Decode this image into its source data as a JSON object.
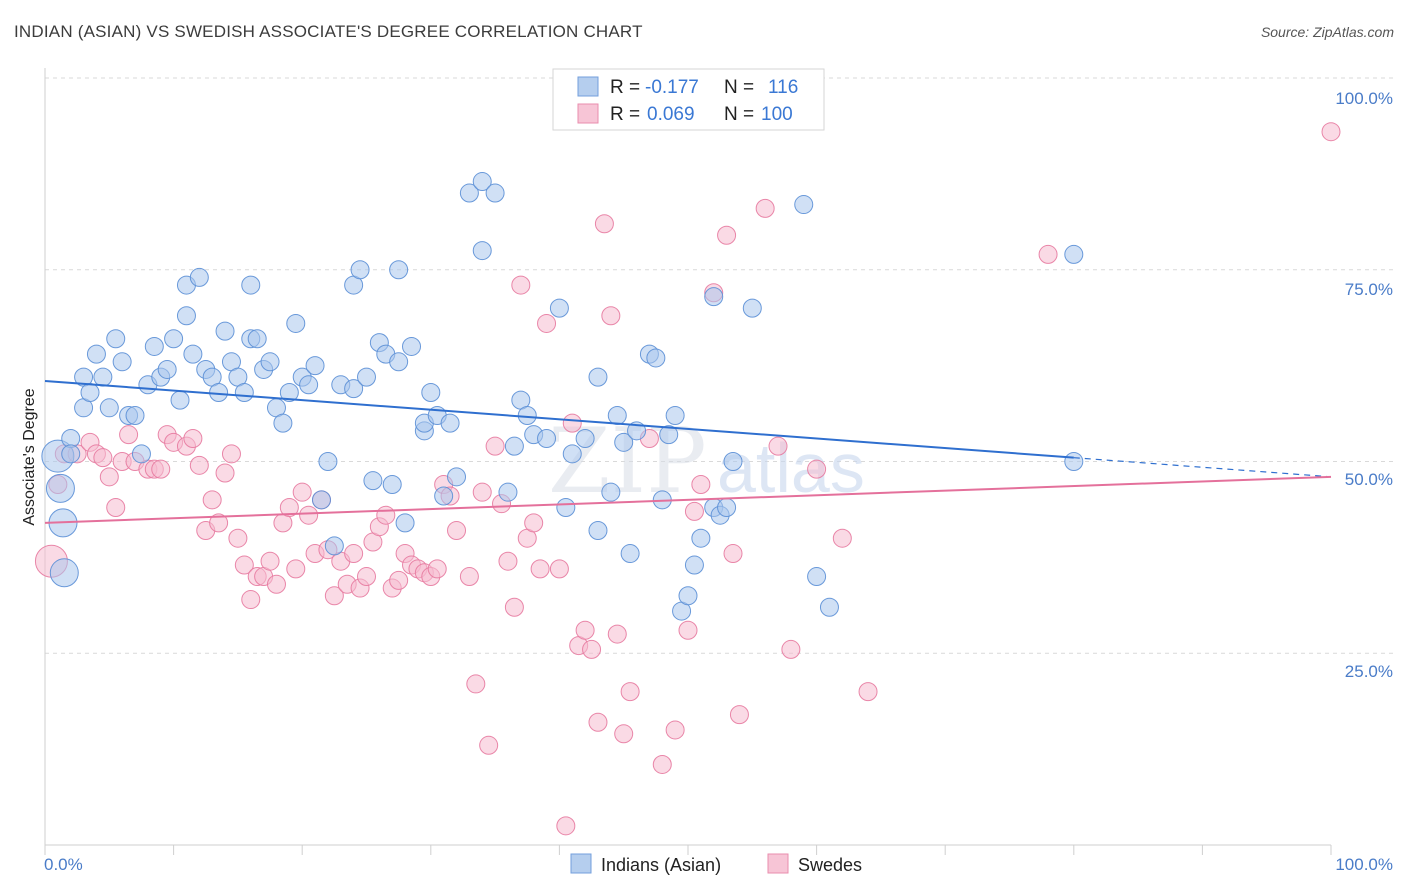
{
  "header": {
    "title": "INDIAN (ASIAN) VS SWEDISH ASSOCIATE'S DEGREE CORRELATION CHART",
    "source": "Source: ZipAtlas.com"
  },
  "watermark": {
    "zip": "ZIP",
    "atlas": "atlas"
  },
  "colors": {
    "blue_fill": "#a9c6ec",
    "blue_stroke": "#5b8fd6",
    "blue_line": "#2f6fcf",
    "pink_fill": "#f6bcd0",
    "pink_stroke": "#e77aa0",
    "pink_line": "#e4709b",
    "axis_label": "#4a7cc8",
    "grid": "#d9d9d9"
  },
  "legend": {
    "rows": [
      {
        "r_label": "R =",
        "r_value": "-0.177",
        "n_label": "N =",
        "n_value": "116"
      },
      {
        "r_label": "R =",
        "r_value": "0.069",
        "n_label": "N =",
        "n_value": "100"
      }
    ]
  },
  "chart_data": {
    "type": "scatter",
    "xlabel": "",
    "ylabel": "Associate's Degree",
    "xlim": [
      0,
      100
    ],
    "ylim": [
      0,
      100
    ],
    "x_tick_labels": [
      "0.0%",
      "100.0%"
    ],
    "y_tick_labels": [
      "25.0%",
      "50.0%",
      "75.0%",
      "100.0%"
    ],
    "y_ticks": [
      25,
      50,
      75,
      100
    ],
    "grid": true,
    "legend_position": "top-center",
    "series": [
      {
        "name": "Indians (Asian)",
        "trend": {
          "x0": 0,
          "y0": 60.5,
          "x1": 80,
          "y1": 50.5,
          "dashed_to": 100,
          "y_end": 48.0
        },
        "points": [
          [
            1,
            50.7
          ],
          [
            1.2,
            46.5
          ],
          [
            1.4,
            42
          ],
          [
            1.5,
            35.5
          ],
          [
            2,
            53
          ],
          [
            2,
            51
          ],
          [
            3,
            61
          ],
          [
            3,
            57
          ],
          [
            3.5,
            59
          ],
          [
            4,
            64
          ],
          [
            4.5,
            61
          ],
          [
            5,
            57
          ],
          [
            5.5,
            66
          ],
          [
            6,
            63
          ],
          [
            6.5,
            56
          ],
          [
            7,
            56
          ],
          [
            7.5,
            51
          ],
          [
            8,
            60
          ],
          [
            8.5,
            65
          ],
          [
            9,
            61
          ],
          [
            9.5,
            62
          ],
          [
            10,
            66
          ],
          [
            10.5,
            58
          ],
          [
            11,
            69
          ],
          [
            11,
            73
          ],
          [
            11.5,
            64
          ],
          [
            12,
            74
          ],
          [
            12.5,
            62
          ],
          [
            13,
            61
          ],
          [
            13.5,
            59
          ],
          [
            14,
            67
          ],
          [
            14.5,
            63
          ],
          [
            15,
            61
          ],
          [
            15.5,
            59
          ],
          [
            16,
            66
          ],
          [
            16,
            73
          ],
          [
            16.5,
            66
          ],
          [
            17,
            62
          ],
          [
            17.5,
            63
          ],
          [
            18,
            57
          ],
          [
            18.5,
            55
          ],
          [
            19,
            59
          ],
          [
            19.5,
            68
          ],
          [
            20,
            61
          ],
          [
            20.5,
            60
          ],
          [
            21,
            62.5
          ],
          [
            21.5,
            45
          ],
          [
            22,
            50
          ],
          [
            22.5,
            39
          ],
          [
            23,
            60
          ],
          [
            24,
            59.5
          ],
          [
            24,
            73
          ],
          [
            24.5,
            75
          ],
          [
            25,
            61
          ],
          [
            25.5,
            47.5
          ],
          [
            26,
            65.5
          ],
          [
            26.5,
            64
          ],
          [
            27,
            47
          ],
          [
            27.5,
            63
          ],
          [
            27.5,
            75
          ],
          [
            28,
            42
          ],
          [
            28.5,
            65
          ],
          [
            29.5,
            54
          ],
          [
            29.5,
            55
          ],
          [
            30,
            59
          ],
          [
            30.5,
            56
          ],
          [
            31,
            45.5
          ],
          [
            31.5,
            55
          ],
          [
            32,
            48
          ],
          [
            33,
            85
          ],
          [
            34,
            86.5
          ],
          [
            34,
            77.5
          ],
          [
            35,
            85
          ],
          [
            36,
            46
          ],
          [
            36.5,
            52
          ],
          [
            37,
            58
          ],
          [
            37.5,
            56
          ],
          [
            38,
            53.5
          ],
          [
            39,
            53
          ],
          [
            40,
            70
          ],
          [
            40.5,
            44
          ],
          [
            41,
            51
          ],
          [
            42,
            53
          ],
          [
            43,
            41
          ],
          [
            43,
            61
          ],
          [
            44,
            46
          ],
          [
            44.5,
            56
          ],
          [
            45,
            52.5
          ],
          [
            45.5,
            38
          ],
          [
            46,
            54
          ],
          [
            47,
            64
          ],
          [
            47.5,
            63.5
          ],
          [
            48,
            45
          ],
          [
            48.5,
            53.5
          ],
          [
            49,
            56
          ],
          [
            49.5,
            30.5
          ],
          [
            50,
            32.5
          ],
          [
            50.5,
            36.5
          ],
          [
            51,
            40
          ],
          [
            52,
            71.5
          ],
          [
            52,
            44
          ],
          [
            52.5,
            43
          ],
          [
            53,
            44
          ],
          [
            53.5,
            50
          ],
          [
            55,
            70
          ],
          [
            59,
            83.5
          ],
          [
            60,
            35
          ],
          [
            61,
            31
          ],
          [
            80,
            50
          ],
          [
            80,
            77
          ]
        ],
        "sizes": {
          "0": 16,
          "1": 14,
          "2": 14,
          "3": 14
        }
      },
      {
        "name": "Swedes",
        "trend": {
          "x0": 0,
          "y0": 42.0,
          "x1": 100,
          "y1": 48.0
        },
        "points": [
          [
            0.5,
            37
          ],
          [
            1,
            47
          ],
          [
            1.5,
            51
          ],
          [
            2.5,
            51
          ],
          [
            3.5,
            52.5
          ],
          [
            4,
            51
          ],
          [
            4.5,
            50.5
          ],
          [
            5,
            48
          ],
          [
            5.5,
            44
          ],
          [
            6,
            50
          ],
          [
            6.5,
            53.5
          ],
          [
            7,
            50
          ],
          [
            8,
            49
          ],
          [
            8.5,
            49
          ],
          [
            9,
            49
          ],
          [
            9.5,
            53.5
          ],
          [
            10,
            52.5
          ],
          [
            11,
            52
          ],
          [
            11.5,
            53
          ],
          [
            12,
            49.5
          ],
          [
            12.5,
            41
          ],
          [
            13,
            45
          ],
          [
            13.5,
            42
          ],
          [
            14,
            48.5
          ],
          [
            14.5,
            51
          ],
          [
            15,
            40
          ],
          [
            15.5,
            36.5
          ],
          [
            16,
            32
          ],
          [
            16.5,
            35
          ],
          [
            17,
            35
          ],
          [
            17.5,
            37
          ],
          [
            18,
            34
          ],
          [
            18.5,
            42
          ],
          [
            19,
            44
          ],
          [
            19.5,
            36
          ],
          [
            20,
            46
          ],
          [
            20.5,
            43
          ],
          [
            21,
            38
          ],
          [
            21.5,
            45
          ],
          [
            22,
            38.5
          ],
          [
            22.5,
            32.5
          ],
          [
            23,
            37
          ],
          [
            23.5,
            34
          ],
          [
            24,
            38
          ],
          [
            24.5,
            33.5
          ],
          [
            25,
            35
          ],
          [
            25.5,
            39.5
          ],
          [
            26,
            41.5
          ],
          [
            26.5,
            43
          ],
          [
            27,
            33.5
          ],
          [
            27.5,
            34.5
          ],
          [
            28,
            38
          ],
          [
            28.5,
            36.5
          ],
          [
            29,
            36
          ],
          [
            29.5,
            35.5
          ],
          [
            30,
            35
          ],
          [
            30.5,
            36
          ],
          [
            31,
            47
          ],
          [
            31.5,
            45.5
          ],
          [
            32,
            41
          ],
          [
            33,
            35
          ],
          [
            33.5,
            21
          ],
          [
            34,
            46
          ],
          [
            34.5,
            13
          ],
          [
            35,
            52
          ],
          [
            35.5,
            44.5
          ],
          [
            36,
            37
          ],
          [
            36.5,
            31
          ],
          [
            37,
            73
          ],
          [
            37.5,
            40
          ],
          [
            38,
            42
          ],
          [
            38.5,
            36
          ],
          [
            39,
            68
          ],
          [
            40,
            36
          ],
          [
            40.5,
            2.5
          ],
          [
            41,
            55
          ],
          [
            41.5,
            26
          ],
          [
            42,
            28
          ],
          [
            42.5,
            25.5
          ],
          [
            43,
            16
          ],
          [
            43.5,
            81
          ],
          [
            44,
            69
          ],
          [
            44.5,
            27.5
          ],
          [
            45,
            14.5
          ],
          [
            45.5,
            20
          ],
          [
            47,
            53
          ],
          [
            48,
            10.5
          ],
          [
            49,
            15
          ],
          [
            50,
            28
          ],
          [
            50.5,
            43.5
          ],
          [
            51,
            47
          ],
          [
            52,
            72
          ],
          [
            53,
            79.5
          ],
          [
            53.5,
            38
          ],
          [
            54,
            17
          ],
          [
            56,
            83
          ],
          [
            57,
            52
          ],
          [
            58,
            25.5
          ],
          [
            60,
            49
          ],
          [
            62,
            40
          ],
          [
            64,
            20
          ],
          [
            78,
            77
          ],
          [
            100,
            93
          ]
        ],
        "sizes": {
          "0": 16
        }
      }
    ]
  },
  "bottom_legend": [
    "Indians (Asian)",
    "Swedes"
  ]
}
